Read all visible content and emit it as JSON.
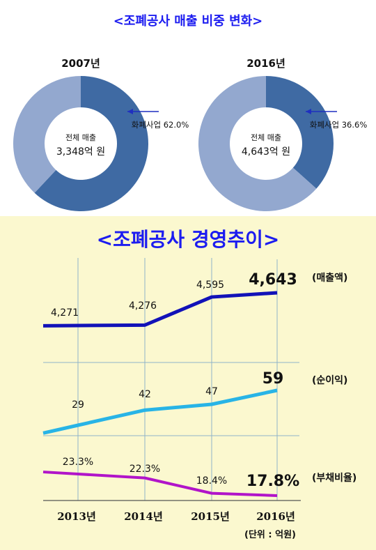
{
  "top_title": "<조폐공사 매출 비중 변화>",
  "bottom_title": "<조폐공사 경영추이>",
  "colors": {
    "dark_slice": "#3f6aa3",
    "light_slice": "#93a8cf",
    "title": "#1c1cf0",
    "sales_line": "#1212b8",
    "profit_line": "#28b4e6",
    "debt_line": "#b114c9",
    "bottom_bg": "#fbf8cf"
  },
  "chart_data": [
    {
      "type": "pie",
      "title": "2007년",
      "center_label": "전체 매출",
      "center_value": "3,348억 원",
      "slice_label": "화폐사업 62.0%",
      "slices": [
        {
          "label": "화폐사업",
          "value": 62.0
        },
        {
          "label": "",
          "value": 38.0
        }
      ]
    },
    {
      "type": "pie",
      "title": "2016년",
      "center_label": "전체 매출",
      "center_value": "4,643억 원",
      "slice_label": "화폐사업 36.6%",
      "slices": [
        {
          "label": "화폐사업",
          "value": 36.6
        },
        {
          "label": "",
          "value": 63.4
        }
      ]
    },
    {
      "type": "line",
      "categories": [
        "2013년",
        "2014년",
        "2015년",
        "2016년"
      ],
      "unit_note": "(단위 : 억원)",
      "series": [
        {
          "name": "(매출액)",
          "values": [
            4271,
            4276,
            4595,
            4643
          ],
          "labels": [
            "4,271",
            "4,276",
            "4,595",
            "4,643"
          ]
        },
        {
          "name": "(순이익)",
          "values": [
            29,
            42,
            47,
            59
          ],
          "labels": [
            "29",
            "42",
            "47",
            "59"
          ]
        },
        {
          "name": "(부채비율)",
          "values": [
            23.3,
            22.3,
            18.4,
            17.8
          ],
          "labels": [
            "23.3%",
            "22.3%",
            "18.4%",
            "17.8%"
          ]
        }
      ]
    }
  ]
}
